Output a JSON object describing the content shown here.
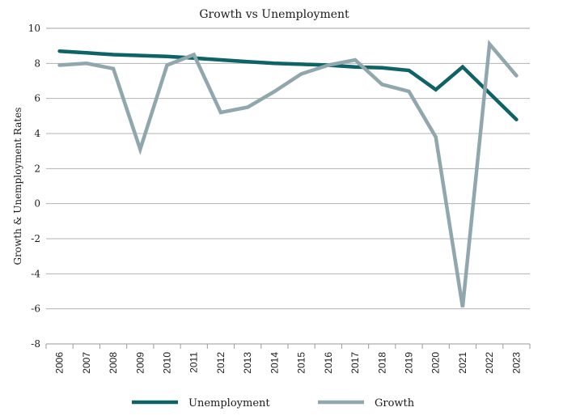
{
  "chart_data": {
    "type": "line",
    "title": "Growth vs Unemployment",
    "xlabel": "",
    "ylabel": "Growth & Unemployment Rates",
    "ylim": [
      -8,
      10
    ],
    "yticks": [
      10,
      8,
      6,
      4,
      2,
      0,
      -2,
      -4,
      -6,
      -8
    ],
    "grid": true,
    "legend_position": "bottom",
    "categories": [
      "2006",
      "2007",
      "2008",
      "2009",
      "2010",
      "2011",
      "2012",
      "2013",
      "2014",
      "2015",
      "2016",
      "2017",
      "2018",
      "2019",
      "2020",
      "2021",
      "2022",
      "2023"
    ],
    "series": [
      {
        "name": "Unemployment",
        "color": "#0e6367",
        "values": [
          8.7,
          8.6,
          8.5,
          8.45,
          8.4,
          8.3,
          8.2,
          8.1,
          8.0,
          7.95,
          7.9,
          7.8,
          7.75,
          7.6,
          6.5,
          7.8,
          6.3,
          4.8
        ]
      },
      {
        "name": "Growth",
        "color": "#8fa7ad",
        "values": [
          7.9,
          8.0,
          7.7,
          3.1,
          7.9,
          8.5,
          5.2,
          5.5,
          6.4,
          7.4,
          7.9,
          8.2,
          6.8,
          6.4,
          3.8,
          -5.9,
          9.1,
          7.3
        ]
      }
    ]
  }
}
